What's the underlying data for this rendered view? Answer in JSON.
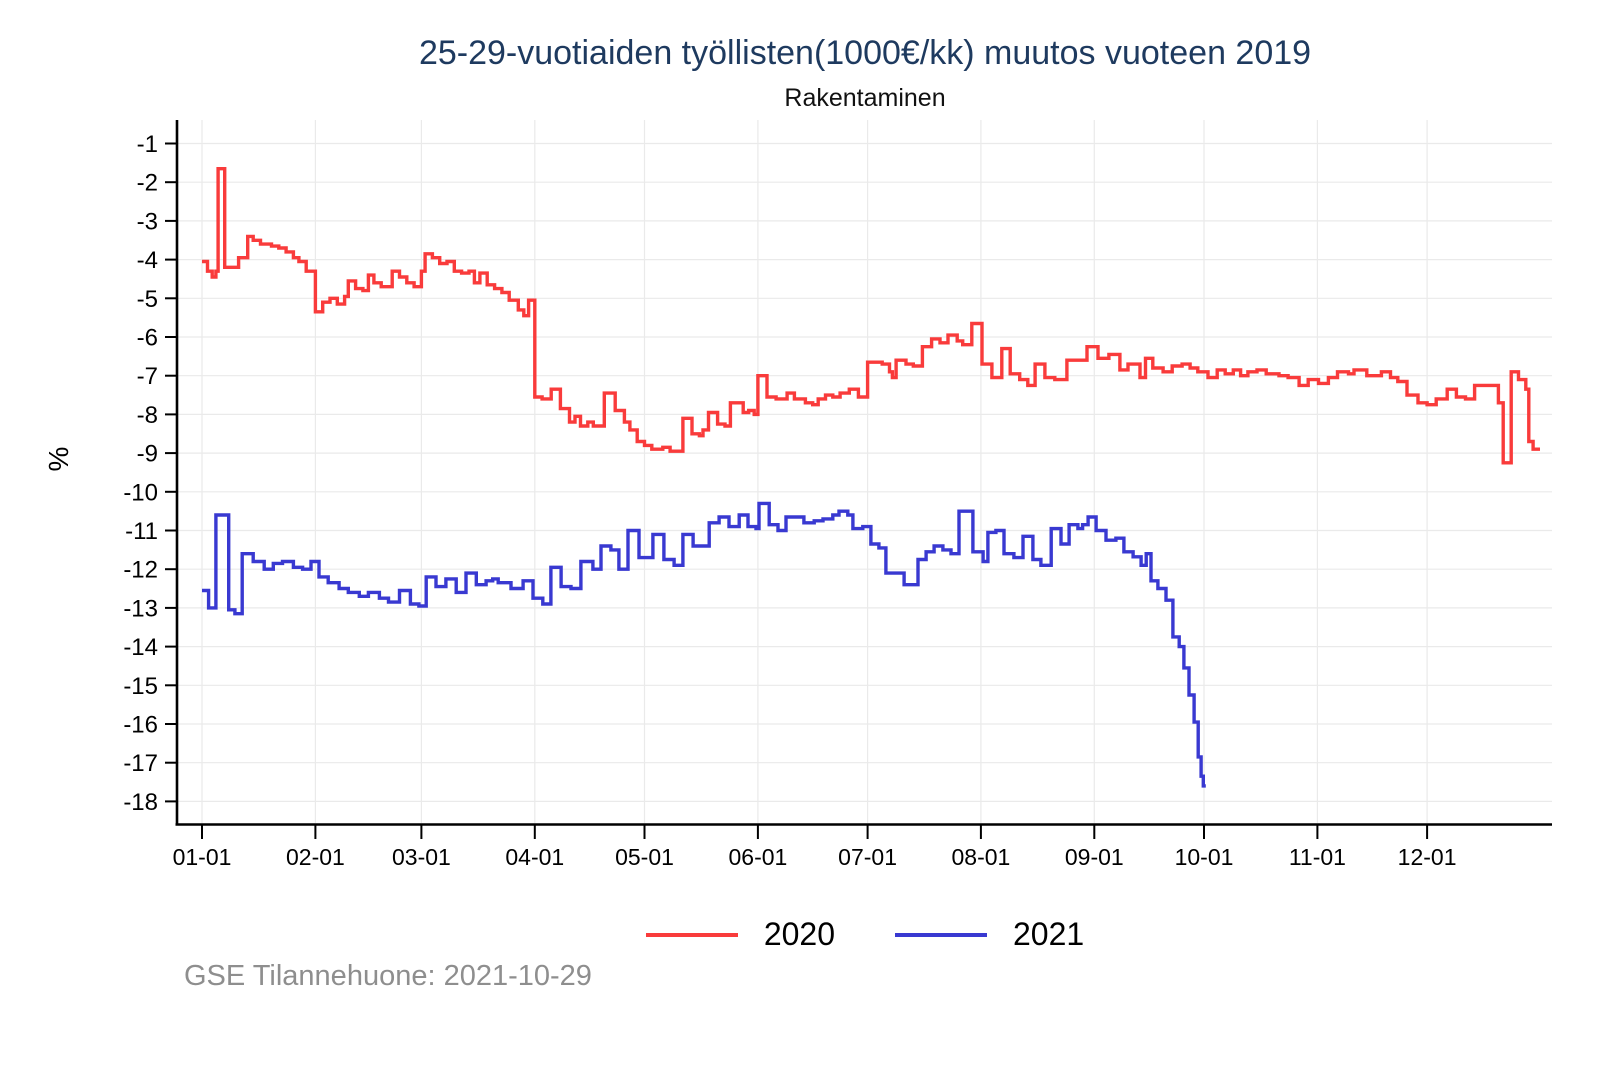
{
  "title": "25-29-vuotiaiden työllisten(1000€/kk) muutos vuoteen 2019",
  "subtitle": "Rakentaminen",
  "footer": "GSE Tilannehuone: 2021-10-29",
  "colors": {
    "title": "#1e3a5f",
    "grid": "#eaeaea",
    "axis": "#000000",
    "footer": "#8e8e8e",
    "series_2020": "#f93b3b",
    "series_2021": "#3939d1"
  },
  "chart_data": {
    "type": "line",
    "step": true,
    "title": "25-29-vuotiaiden työllisten(1000€/kk) muutos vuoteen 2019",
    "subtitle": "Rakentaminen",
    "xlabel": "",
    "ylabel": "%",
    "ylim": [
      -18,
      -1
    ],
    "grid": true,
    "legend_position": "bottom",
    "y_ticks": [
      -1,
      -2,
      -3,
      -4,
      -5,
      -6,
      -7,
      -8,
      -9,
      -10,
      -11,
      -12,
      -13,
      -14,
      -15,
      -16,
      -17,
      -18
    ],
    "x_tick_labels": [
      "01-01",
      "02-01",
      "03-01",
      "04-01",
      "05-01",
      "06-01",
      "07-01",
      "08-01",
      "09-01",
      "10-01",
      "11-01",
      "12-01"
    ],
    "x_tick_days": [
      0,
      31,
      60,
      91,
      121,
      152,
      182,
      213,
      244,
      274,
      305,
      335
    ],
    "x_unit": "day-of-year",
    "series": [
      {
        "name": "2020",
        "color": "#f93b3b",
        "points": [
          [
            0,
            -4.05
          ],
          [
            1.5,
            -4.3
          ],
          [
            2.8,
            -4.45
          ],
          [
            3.8,
            -4.3
          ],
          [
            4.4,
            -1.65
          ],
          [
            6.2,
            -4.2
          ],
          [
            10,
            -3.95
          ],
          [
            12.5,
            -3.4
          ],
          [
            14,
            -3.5
          ],
          [
            16,
            -3.6
          ],
          [
            19,
            -3.65
          ],
          [
            21,
            -3.7
          ],
          [
            23,
            -3.8
          ],
          [
            25,
            -3.95
          ],
          [
            26.5,
            -4.05
          ],
          [
            28.5,
            -4.3
          ],
          [
            31,
            -5.35
          ],
          [
            33,
            -5.1
          ],
          [
            35,
            -5.0
          ],
          [
            37,
            -5.15
          ],
          [
            39,
            -4.95
          ],
          [
            40,
            -4.55
          ],
          [
            42,
            -4.75
          ],
          [
            44,
            -4.8
          ],
          [
            45.5,
            -4.4
          ],
          [
            47,
            -4.6
          ],
          [
            49,
            -4.7
          ],
          [
            52,
            -4.3
          ],
          [
            54,
            -4.45
          ],
          [
            56,
            -4.6
          ],
          [
            58,
            -4.7
          ],
          [
            60,
            -4.3
          ],
          [
            61,
            -3.85
          ],
          [
            63,
            -3.95
          ],
          [
            65,
            -4.1
          ],
          [
            67,
            -4.05
          ],
          [
            69,
            -4.3
          ],
          [
            71,
            -4.35
          ],
          [
            73,
            -4.3
          ],
          [
            74.5,
            -4.6
          ],
          [
            76,
            -4.35
          ],
          [
            78,
            -4.65
          ],
          [
            80,
            -4.75
          ],
          [
            82,
            -4.85
          ],
          [
            84,
            -5.05
          ],
          [
            86.5,
            -5.3
          ],
          [
            88,
            -5.45
          ],
          [
            89.3,
            -5.05
          ],
          [
            91,
            -7.55
          ],
          [
            93,
            -7.6
          ],
          [
            95.5,
            -7.35
          ],
          [
            98,
            -7.85
          ],
          [
            100.5,
            -8.2
          ],
          [
            102,
            -8.05
          ],
          [
            103.5,
            -8.3
          ],
          [
            105.5,
            -8.2
          ],
          [
            107,
            -8.3
          ],
          [
            110,
            -7.45
          ],
          [
            113,
            -7.9
          ],
          [
            115.5,
            -8.2
          ],
          [
            117,
            -8.4
          ],
          [
            119,
            -8.7
          ],
          [
            121,
            -8.8
          ],
          [
            123,
            -8.9
          ],
          [
            126,
            -8.85
          ],
          [
            128,
            -8.95
          ],
          [
            131.5,
            -8.1
          ],
          [
            134,
            -8.5
          ],
          [
            136,
            -8.55
          ],
          [
            137,
            -8.4
          ],
          [
            138.5,
            -7.95
          ],
          [
            141,
            -8.25
          ],
          [
            143,
            -8.3
          ],
          [
            144.5,
            -7.7
          ],
          [
            148,
            -7.95
          ],
          [
            149.5,
            -7.9
          ],
          [
            151,
            -8.0
          ],
          [
            152,
            -7.0
          ],
          [
            154.5,
            -7.55
          ],
          [
            157,
            -7.6
          ],
          [
            160,
            -7.45
          ],
          [
            162,
            -7.6
          ],
          [
            165,
            -7.7
          ],
          [
            167,
            -7.75
          ],
          [
            168.5,
            -7.6
          ],
          [
            170.5,
            -7.5
          ],
          [
            172.5,
            -7.55
          ],
          [
            174.5,
            -7.45
          ],
          [
            177,
            -7.35
          ],
          [
            179.5,
            -7.55
          ],
          [
            182,
            -6.65
          ],
          [
            186,
            -6.7
          ],
          [
            188,
            -6.9
          ],
          [
            188.8,
            -7.05
          ],
          [
            189.8,
            -6.6
          ],
          [
            192.5,
            -6.7
          ],
          [
            194.5,
            -6.75
          ],
          [
            197,
            -6.25
          ],
          [
            199.5,
            -6.05
          ],
          [
            201.8,
            -6.15
          ],
          [
            204,
            -5.95
          ],
          [
            206.5,
            -6.1
          ],
          [
            208,
            -6.2
          ],
          [
            210.5,
            -5.65
          ],
          [
            213.3,
            -6.7
          ],
          [
            216,
            -7.05
          ],
          [
            218.7,
            -6.3
          ],
          [
            221,
            -6.95
          ],
          [
            223.6,
            -7.1
          ],
          [
            225.8,
            -7.25
          ],
          [
            227.8,
            -6.7
          ],
          [
            230.5,
            -7.05
          ],
          [
            233.2,
            -7.1
          ],
          [
            236.5,
            -6.6
          ],
          [
            242,
            -6.25
          ],
          [
            245,
            -6.55
          ],
          [
            248,
            -6.45
          ],
          [
            251,
            -6.85
          ],
          [
            253.2,
            -6.7
          ],
          [
            256.5,
            -7.05
          ],
          [
            258,
            -6.55
          ],
          [
            260,
            -6.8
          ],
          [
            262.8,
            -6.9
          ],
          [
            265.3,
            -6.75
          ],
          [
            268,
            -6.7
          ],
          [
            270.2,
            -6.8
          ],
          [
            272.3,
            -6.9
          ],
          [
            275.1,
            -7.05
          ],
          [
            277.6,
            -6.85
          ],
          [
            279.8,
            -6.95
          ],
          [
            282,
            -6.85
          ],
          [
            284,
            -7.0
          ],
          [
            286,
            -6.9
          ],
          [
            288.5,
            -6.85
          ],
          [
            291,
            -6.95
          ],
          [
            294.5,
            -7.0
          ],
          [
            297,
            -7.05
          ],
          [
            300,
            -7.25
          ],
          [
            302.5,
            -7.1
          ],
          [
            305.3,
            -7.2
          ],
          [
            308,
            -7.05
          ],
          [
            310.5,
            -6.9
          ],
          [
            313.5,
            -6.95
          ],
          [
            315,
            -6.85
          ],
          [
            318.5,
            -7.0
          ],
          [
            322.5,
            -6.9
          ],
          [
            325,
            -7.05
          ],
          [
            327,
            -7.15
          ],
          [
            329.5,
            -7.5
          ],
          [
            332.5,
            -7.7
          ],
          [
            335,
            -7.75
          ],
          [
            337.5,
            -7.6
          ],
          [
            340.5,
            -7.35
          ],
          [
            343,
            -7.55
          ],
          [
            345.5,
            -7.6
          ],
          [
            348,
            -7.25
          ],
          [
            354.5,
            -7.7
          ],
          [
            355.8,
            -9.25
          ],
          [
            358,
            -6.9
          ],
          [
            360,
            -7.1
          ],
          [
            362,
            -7.35
          ],
          [
            362.8,
            -8.7
          ],
          [
            364,
            -8.9
          ],
          [
            365.2,
            -8.9
          ]
        ]
      },
      {
        "name": "2021",
        "color": "#3939d1",
        "points": [
          [
            0,
            -12.55
          ],
          [
            1.8,
            -13.0
          ],
          [
            3.8,
            -10.6
          ],
          [
            7.3,
            -13.05
          ],
          [
            9,
            -13.15
          ],
          [
            11,
            -11.6
          ],
          [
            14,
            -11.8
          ],
          [
            17,
            -12.0
          ],
          [
            19.5,
            -11.85
          ],
          [
            22,
            -11.8
          ],
          [
            25,
            -11.95
          ],
          [
            27.5,
            -12.0
          ],
          [
            29.8,
            -11.8
          ],
          [
            32,
            -12.2
          ],
          [
            34.5,
            -12.35
          ],
          [
            37.5,
            -12.5
          ],
          [
            40,
            -12.6
          ],
          [
            43,
            -12.7
          ],
          [
            45.5,
            -12.6
          ],
          [
            48.5,
            -12.75
          ],
          [
            51,
            -12.85
          ],
          [
            54,
            -12.55
          ],
          [
            57,
            -12.9
          ],
          [
            59.3,
            -12.95
          ],
          [
            61.3,
            -12.2
          ],
          [
            64,
            -12.45
          ],
          [
            66.7,
            -12.25
          ],
          [
            69.5,
            -12.6
          ],
          [
            72.2,
            -12.1
          ],
          [
            75,
            -12.4
          ],
          [
            77.7,
            -12.3
          ],
          [
            79.5,
            -12.25
          ],
          [
            81,
            -12.35
          ],
          [
            84.5,
            -12.5
          ],
          [
            87.8,
            -12.3
          ],
          [
            90.5,
            -12.75
          ],
          [
            93.2,
            -12.9
          ],
          [
            95.4,
            -11.95
          ],
          [
            98.2,
            -12.45
          ],
          [
            100.9,
            -12.5
          ],
          [
            103.6,
            -11.8
          ],
          [
            106.9,
            -12.0
          ],
          [
            109.1,
            -11.4
          ],
          [
            111.8,
            -11.5
          ],
          [
            114,
            -12.0
          ],
          [
            116.5,
            -11.0
          ],
          [
            119.5,
            -11.7
          ],
          [
            123.3,
            -11.1
          ],
          [
            126.3,
            -11.75
          ],
          [
            129.1,
            -11.9
          ],
          [
            131.5,
            -11.1
          ],
          [
            134.3,
            -11.4
          ],
          [
            138.7,
            -10.8
          ],
          [
            141.4,
            -10.65
          ],
          [
            144.1,
            -10.9
          ],
          [
            146.9,
            -10.6
          ],
          [
            149.3,
            -10.9
          ],
          [
            151.5,
            -10.95
          ],
          [
            152.3,
            -10.3
          ],
          [
            155.1,
            -10.85
          ],
          [
            157.5,
            -11.0
          ],
          [
            159.7,
            -10.65
          ],
          [
            164.6,
            -10.8
          ],
          [
            167.4,
            -10.75
          ],
          [
            169.8,
            -10.7
          ],
          [
            172.5,
            -10.6
          ],
          [
            174.2,
            -10.5
          ],
          [
            176.6,
            -10.6
          ],
          [
            178,
            -10.95
          ],
          [
            180.7,
            -10.9
          ],
          [
            182.9,
            -11.35
          ],
          [
            185.1,
            -11.45
          ],
          [
            187,
            -12.1
          ],
          [
            192,
            -12.4
          ],
          [
            195.8,
            -11.75
          ],
          [
            198,
            -11.55
          ],
          [
            200.2,
            -11.4
          ],
          [
            202.6,
            -11.5
          ],
          [
            204.8,
            -11.6
          ],
          [
            207,
            -10.5
          ],
          [
            210.8,
            -11.55
          ],
          [
            213.6,
            -11.8
          ],
          [
            214.9,
            -11.05
          ],
          [
            217.1,
            -11.0
          ],
          [
            219.3,
            -11.6
          ],
          [
            222,
            -11.7
          ],
          [
            224.5,
            -11.15
          ],
          [
            227.2,
            -11.75
          ],
          [
            229.4,
            -11.9
          ],
          [
            232.2,
            -10.95
          ],
          [
            234.9,
            -11.35
          ],
          [
            237.1,
            -10.85
          ],
          [
            239.5,
            -10.95
          ],
          [
            240.8,
            -10.85
          ],
          [
            242.3,
            -10.65
          ],
          [
            244.5,
            -11.0
          ],
          [
            247.2,
            -11.25
          ],
          [
            249.9,
            -11.2
          ],
          [
            252.1,
            -11.55
          ],
          [
            254.6,
            -11.68
          ],
          [
            256.8,
            -11.9
          ],
          [
            258.2,
            -11.6
          ],
          [
            259.5,
            -12.3
          ],
          [
            261.4,
            -12.5
          ],
          [
            263.6,
            -12.8
          ],
          [
            265.5,
            -13.75
          ],
          [
            267.2,
            -14.0
          ],
          [
            268.5,
            -14.55
          ],
          [
            269.9,
            -15.25
          ],
          [
            271.3,
            -15.95
          ],
          [
            272.4,
            -16.85
          ],
          [
            273.2,
            -17.35
          ],
          [
            273.8,
            -17.6
          ]
        ]
      }
    ]
  }
}
